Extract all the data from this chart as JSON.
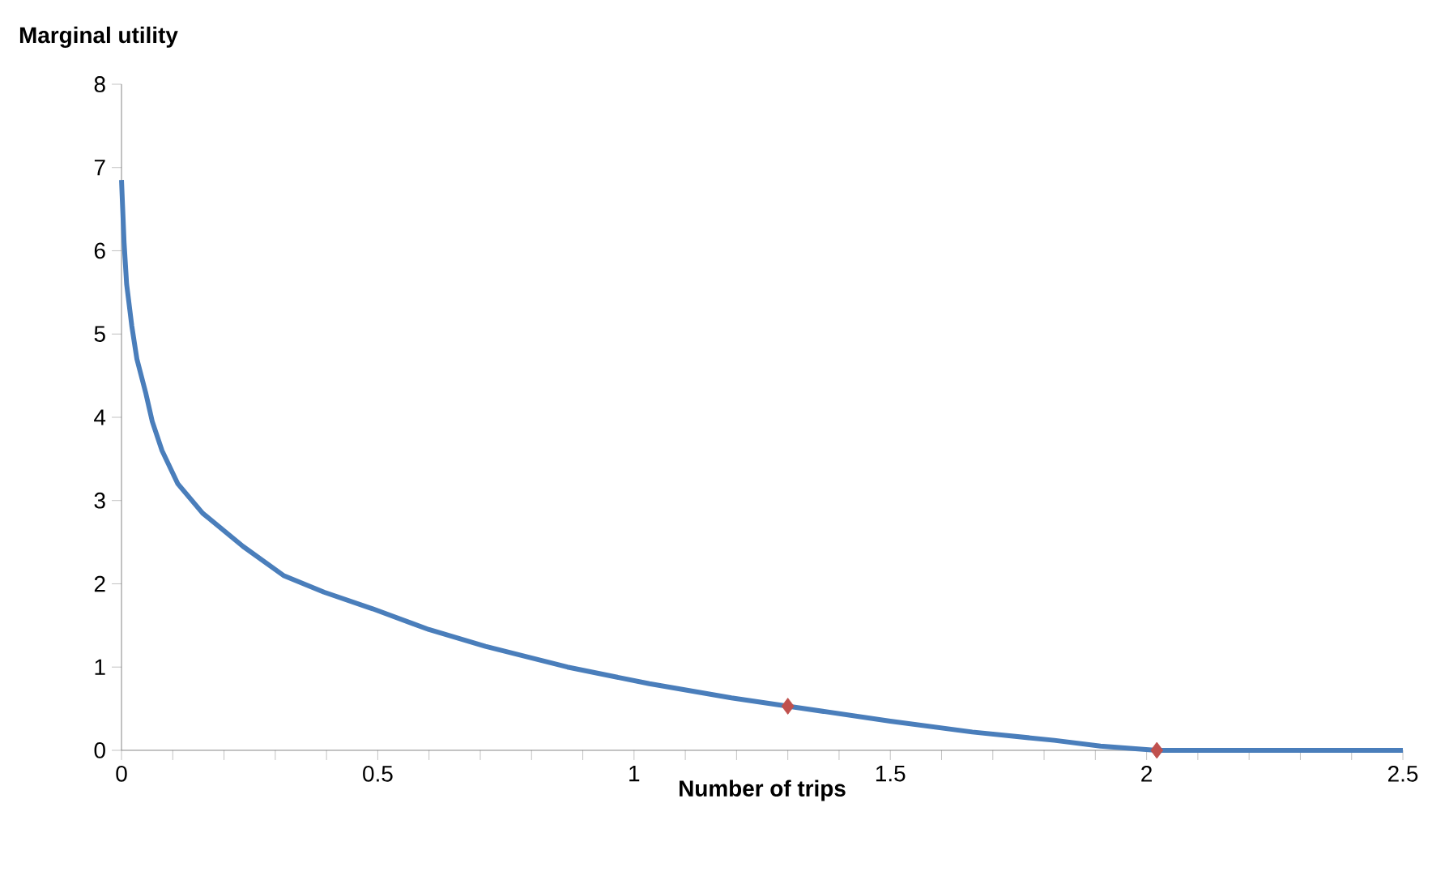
{
  "chart_data": {
    "type": "line",
    "xlabel": "Number of trips",
    "ylabel": "Marginal utility",
    "xlim": [
      0,
      2.5
    ],
    "ylim": [
      0,
      8
    ],
    "xticks": [
      0,
      {
        "value": 0.1,
        "label": null
      },
      {
        "value": 0.2,
        "label": null
      },
      {
        "value": 0.3,
        "label": null
      },
      {
        "value": 0.4,
        "label": null
      },
      0.5,
      {
        "value": 0.6,
        "label": null
      },
      {
        "value": 0.7,
        "label": null
      },
      {
        "value": 0.8,
        "label": null
      },
      {
        "value": 0.9,
        "label": null
      },
      1,
      {
        "value": 1.1,
        "label": null
      },
      {
        "value": 1.2,
        "label": null
      },
      {
        "value": 1.3,
        "label": null
      },
      {
        "value": 1.4,
        "label": null
      },
      1.5,
      {
        "value": 1.6,
        "label": null
      },
      {
        "value": 1.7,
        "label": null
      },
      {
        "value": 1.8,
        "label": null
      },
      {
        "value": 1.9,
        "label": null
      },
      2,
      {
        "value": 2.1,
        "label": null
      },
      {
        "value": 2.2,
        "label": null
      },
      {
        "value": 2.3,
        "label": null
      },
      {
        "value": 2.4,
        "label": null
      },
      2.5
    ],
    "yticks": [
      0,
      1,
      2,
      3,
      4,
      5,
      6,
      7,
      8
    ],
    "grid": false,
    "series": [
      {
        "color": "#4a7ebb",
        "marker": "none",
        "x": [
          0,
          0.005,
          0.01,
          0.02,
          0.03,
          0.047,
          0.06,
          0.079,
          0.11,
          0.158,
          0.237,
          0.316,
          0.395,
          0.49,
          0.6,
          0.71,
          0.87,
          1.03,
          1.19,
          1.3,
          1.5,
          1.66,
          1.82,
          1.91,
          2.02,
          2.2,
          2.5
        ],
        "values": [
          6.85,
          6.1,
          5.6,
          5.1,
          4.7,
          4.3,
          3.95,
          3.6,
          3.2,
          2.85,
          2.45,
          2.1,
          1.9,
          1.7,
          1.45,
          1.25,
          1.0,
          0.8,
          0.63,
          0.53,
          0.35,
          0.22,
          0.12,
          0.05,
          0,
          0,
          0
        ]
      },
      {
        "type": "scatter",
        "color": "#c0504d",
        "marker": "diamond",
        "x": [
          1.3,
          2.02
        ],
        "values": [
          0.53,
          0
        ]
      }
    ]
  }
}
